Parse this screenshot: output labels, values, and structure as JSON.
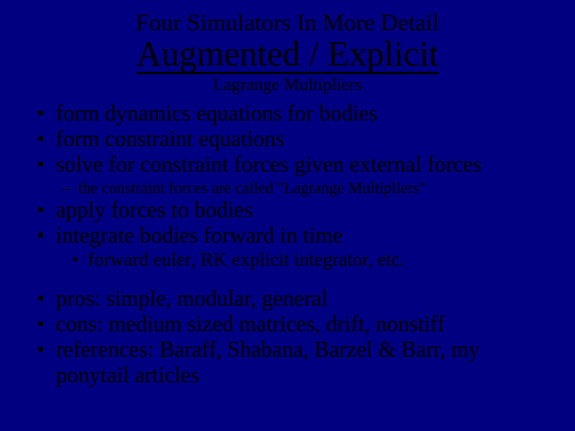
{
  "background_color": "#000080",
  "text_color": "#000000",
  "title": {
    "line1": "Four Simulators In More Detail",
    "line2": "Augmented / Explicit",
    "line3": "Lagrange Multipliers",
    "line1_fontsize": 30,
    "line2_fontsize": 44,
    "line3_fontsize": 22
  },
  "bullets": {
    "b1": "form dynamics equations for bodies",
    "b2": "form constraint equations",
    "b3": "solve for constraint forces given external forces",
    "b3_sub": "the constraint forces are called \"Lagrange Multipliers\"",
    "b4": "apply forces to bodies",
    "b5": "integrate bodies forward in time",
    "b5_sub": "forward euler, RK explicit integrator, etc.",
    "b6": "pros:  simple, modular, general",
    "b7": "cons:  medium sized matrices, drift, nonstiff",
    "b8": "references:  Baraff, Shabana, Barzel & Barr, my ponytail articles",
    "main_fontsize": 28,
    "sub_fontsize": 20
  }
}
